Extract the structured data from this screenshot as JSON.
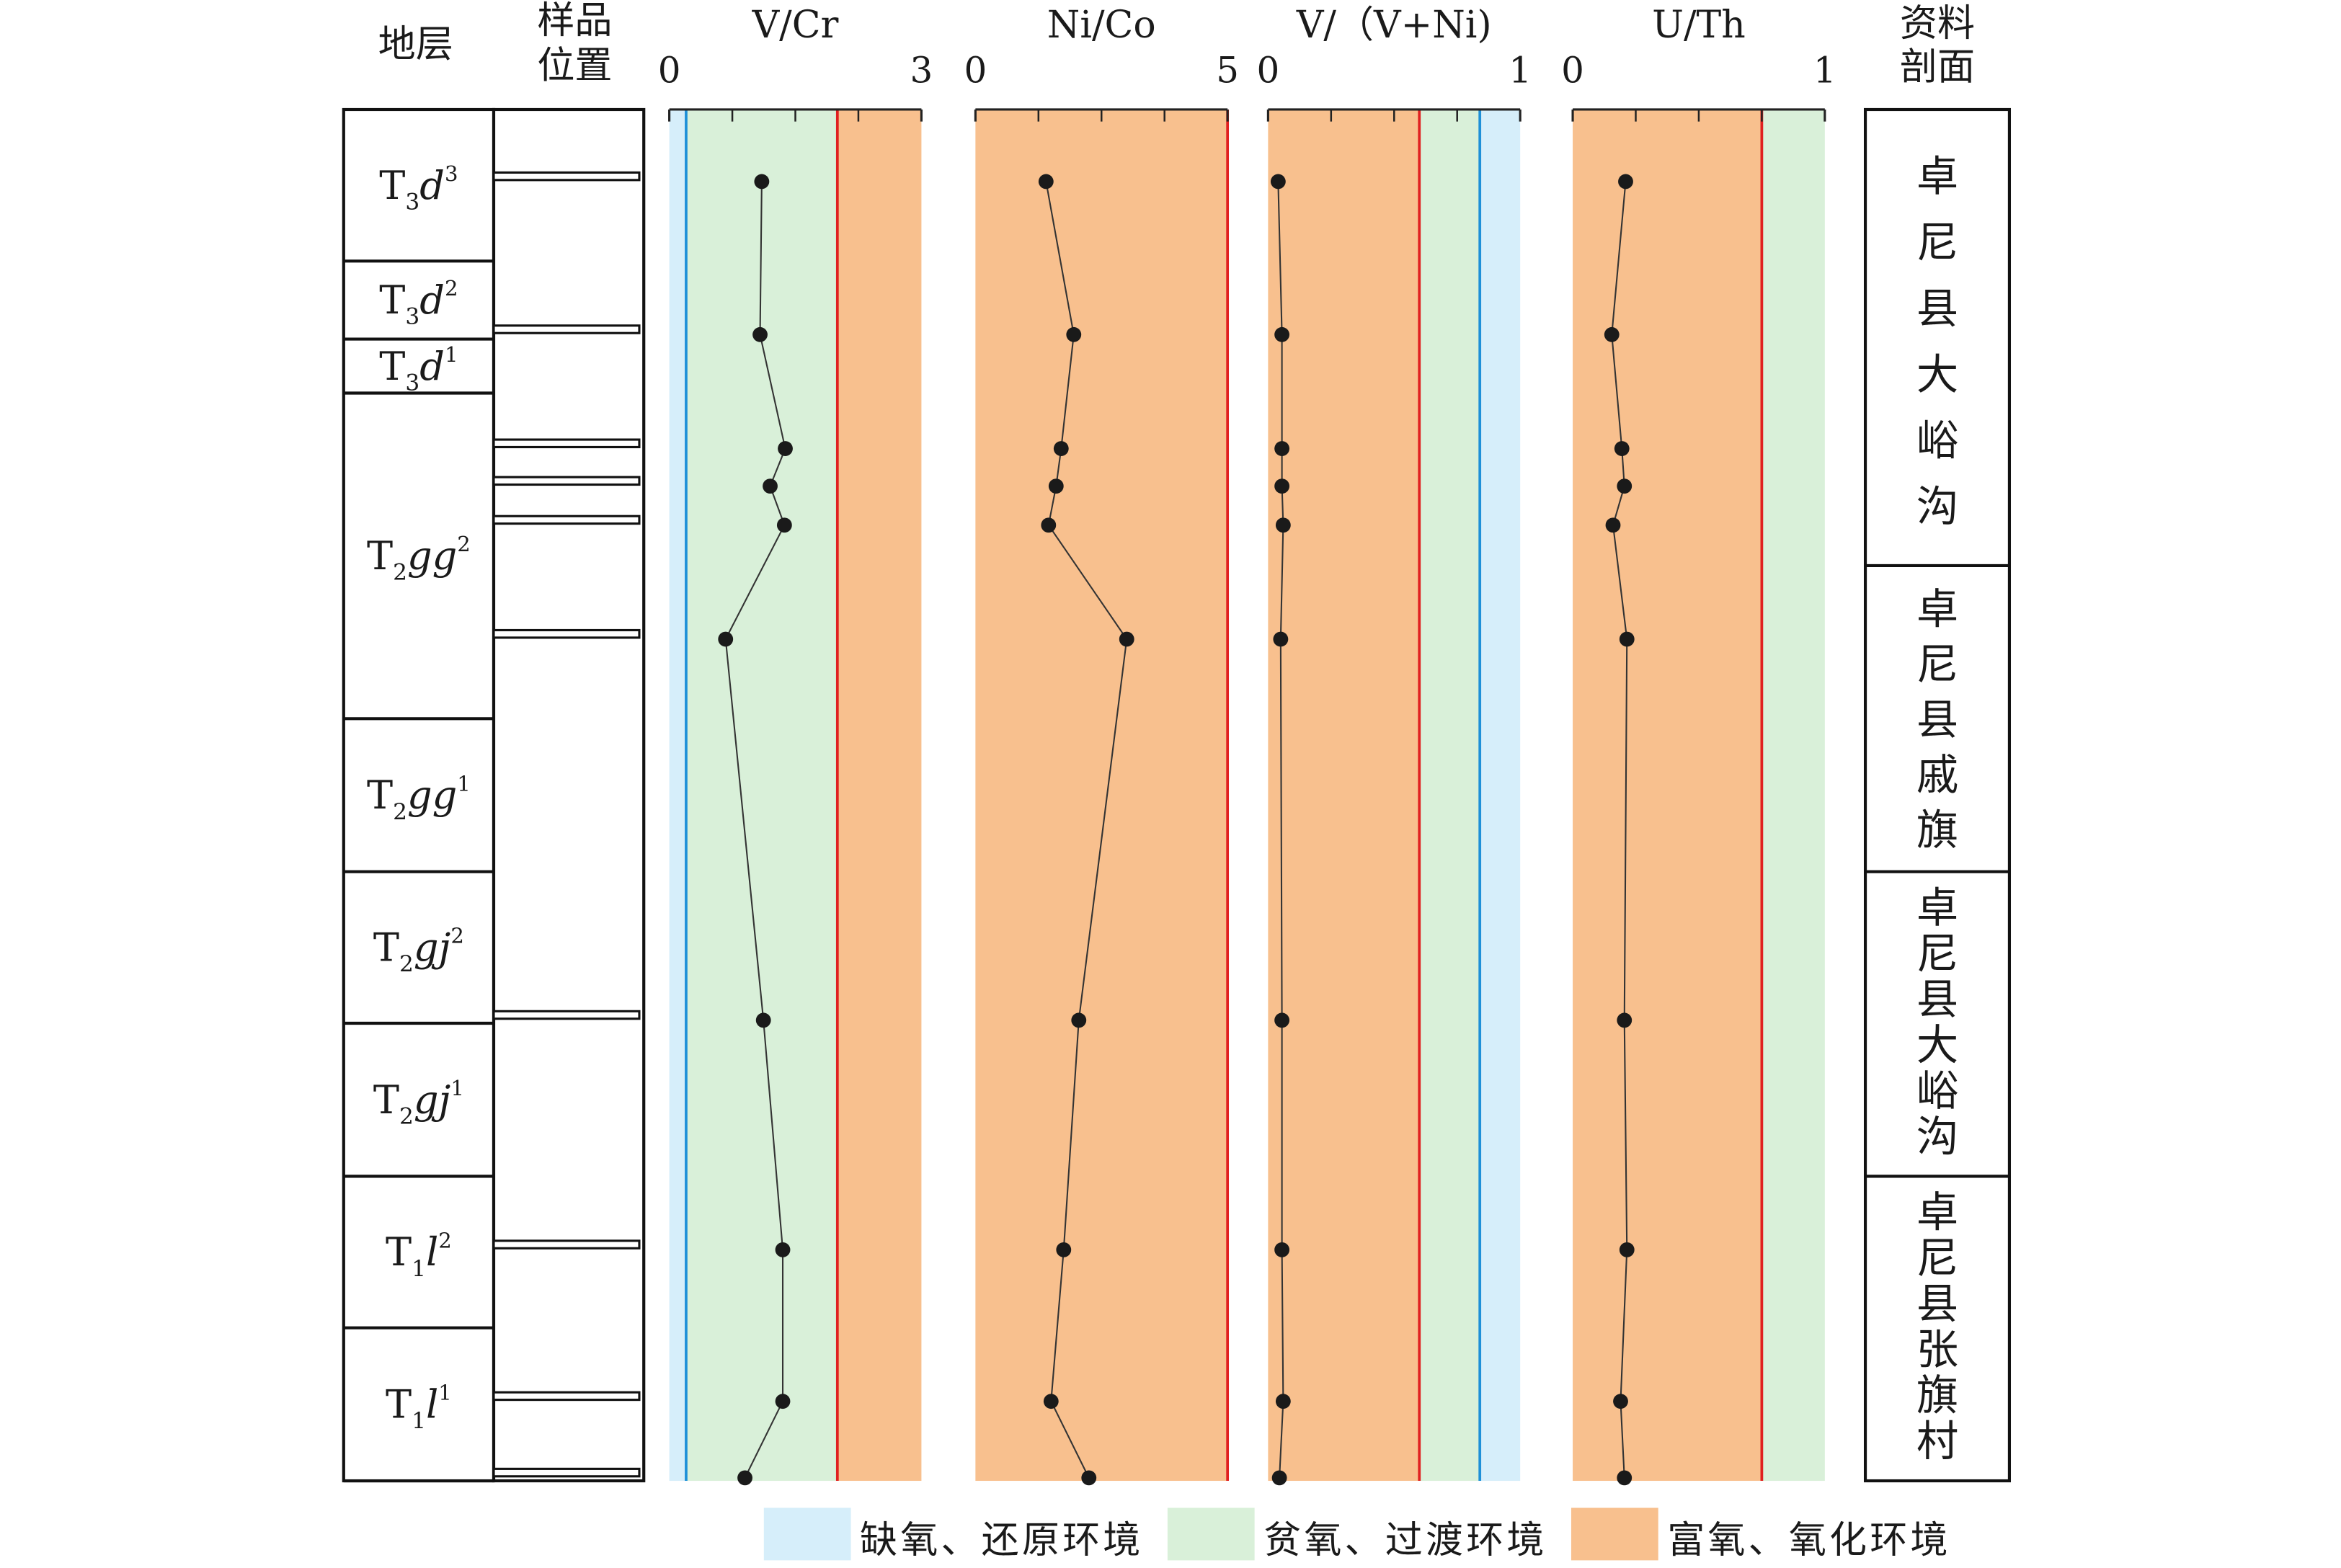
{
  "chart_data": {
    "type": "line",
    "column_headers": {
      "strata": "地层",
      "sample_position": [
        "样品",
        "位置"
      ],
      "section": [
        "资料",
        "剖面"
      ]
    },
    "strata": [
      {
        "base": "T",
        "sub": "3",
        "letters": "d",
        "sup": "3",
        "top": 73,
        "bottom": 174
      },
      {
        "base": "T",
        "sub": "3",
        "letters": "d",
        "sup": "2",
        "top": 174,
        "bottom": 226
      },
      {
        "base": "T",
        "sub": "3",
        "letters": "d",
        "sup": "1",
        "top": 226,
        "bottom": 262
      },
      {
        "base": "T",
        "sub": "2",
        "letters": "gg",
        "sup": "2",
        "top": 262,
        "bottom": 479
      },
      {
        "base": "T",
        "sub": "2",
        "letters": "gg",
        "sup": "1",
        "top": 479,
        "bottom": 581
      },
      {
        "base": "T",
        "sub": "2",
        "letters": "gj",
        "sup": "2",
        "top": 581,
        "bottom": 682
      },
      {
        "base": "T",
        "sub": "2",
        "letters": "gj",
        "sup": "1",
        "top": 682,
        "bottom": 784
      },
      {
        "base": "T",
        "sub": "1",
        "letters": "l",
        "sup": "2",
        "top": 784,
        "bottom": 885
      },
      {
        "base": "T",
        "sub": "1",
        "letters": "l",
        "sup": "1",
        "top": 885,
        "bottom": 987
      }
    ],
    "sections": [
      {
        "name": "卓尼县大峪沟",
        "top": 73,
        "bottom": 377
      },
      {
        "name": "卓尼县戚旗",
        "top": 377,
        "bottom": 581
      },
      {
        "name": "卓尼县大峪沟",
        "top": 581,
        "bottom": 784
      },
      {
        "name": "卓尼县张旗村",
        "top": 784,
        "bottom": 987
      }
    ],
    "depth_axis_range": [
      73,
      987
    ],
    "sample_depths": [
      121,
      223,
      299,
      324,
      350,
      426,
      680,
      833,
      934,
      985
    ],
    "panels": [
      {
        "title": "V/Cr",
        "xlim": [
          0,
          3
        ],
        "tick_labels": [
          "0",
          "3"
        ],
        "zones": [
          {
            "env": "anoxic",
            "from": 0,
            "to": 0.2
          },
          {
            "env": "dysoxic",
            "from": 0.2,
            "to": 2
          },
          {
            "env": "oxic",
            "from": 2,
            "to": 3
          }
        ],
        "thresholds": [
          {
            "value": 0.2,
            "color": "#1e90d8"
          },
          {
            "value": 2,
            "color": "#e02020"
          }
        ],
        "values": [
          1.1,
          1.08,
          1.38,
          1.2,
          1.37,
          0.67,
          1.12,
          1.35,
          1.35,
          0.9
        ]
      },
      {
        "title": "Ni/Co",
        "xlim": [
          0,
          5
        ],
        "tick_labels": [
          "0",
          "5"
        ],
        "zones": [
          {
            "env": "oxic",
            "from": 0,
            "to": 5
          }
        ],
        "thresholds": [
          {
            "value": 5,
            "color": "#e02020"
          }
        ],
        "values": [
          1.4,
          1.95,
          1.7,
          1.6,
          1.45,
          3.0,
          2.05,
          1.75,
          1.5,
          2.25
        ]
      },
      {
        "title": "V/（V+Ni)",
        "xlim": [
          0,
          1
        ],
        "tick_labels": [
          "0",
          "1"
        ],
        "zones": [
          {
            "env": "oxic",
            "from": 0,
            "to": 0.6
          },
          {
            "env": "dysoxic",
            "from": 0.6,
            "to": 0.84
          },
          {
            "env": "anoxic",
            "from": 0.84,
            "to": 1
          }
        ],
        "thresholds": [
          {
            "value": 0.6,
            "color": "#e02020"
          },
          {
            "value": 0.84,
            "color": "#1e90d8"
          }
        ],
        "values": [
          0.04,
          0.055,
          0.055,
          0.055,
          0.06,
          0.05,
          0.055,
          0.055,
          0.06,
          0.045
        ]
      },
      {
        "title": "U/Th",
        "xlim": [
          0,
          1
        ],
        "tick_labels": [
          "0",
          "1"
        ],
        "zones": [
          {
            "env": "oxic",
            "from": 0,
            "to": 0.75
          },
          {
            "env": "dysoxic",
            "from": 0.75,
            "to": 1
          }
        ],
        "thresholds": [
          {
            "value": 0.75,
            "color": "#e02020"
          }
        ],
        "values": [
          0.21,
          0.155,
          0.195,
          0.205,
          0.16,
          0.215,
          0.205,
          0.215,
          0.19,
          0.205
        ]
      }
    ],
    "legend": [
      {
        "env": "anoxic",
        "label": "缺氧、还原环境",
        "color": "#d6eefa"
      },
      {
        "env": "dysoxic",
        "label": "贫氧、过渡环境",
        "color": "#d9f0d9"
      },
      {
        "env": "oxic",
        "label": "富氧、氧化环境",
        "color": "#f8c08e"
      }
    ],
    "legend_placement": "bottom",
    "colors": {
      "anoxic": "#d6eefa",
      "dysoxic": "#d9f0d9",
      "oxic": "#f8c08e"
    }
  }
}
